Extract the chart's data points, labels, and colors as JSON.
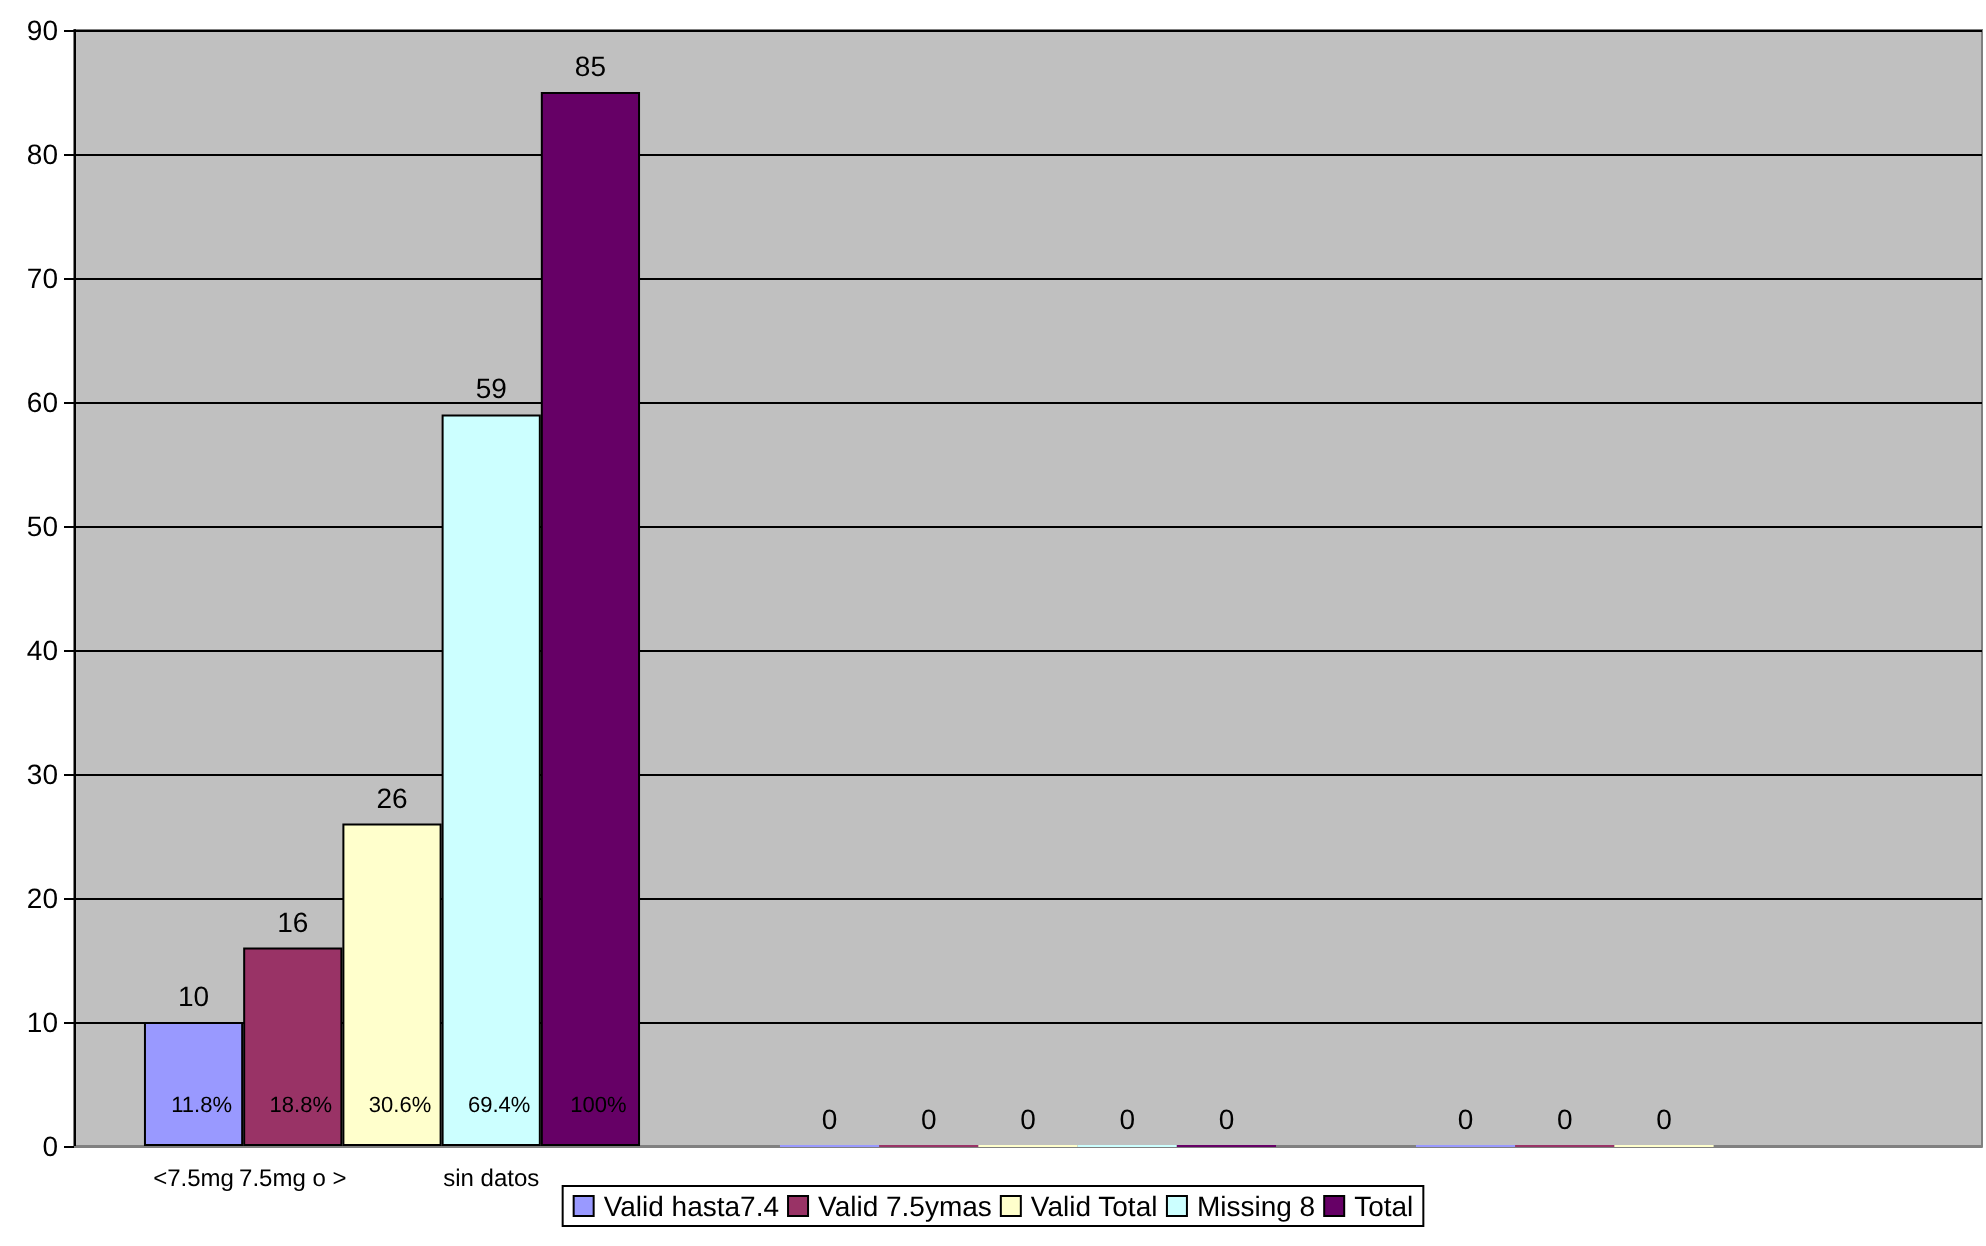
{
  "chart_data": {
    "type": "bar",
    "categories": [
      null,
      null,
      null
    ],
    "series": [
      {
        "name": "Valid hasta7.4",
        "color": "#9999ff",
        "values": [
          10,
          0,
          0
        ]
      },
      {
        "name": "Valid 7.5ymas",
        "color": "#993366",
        "values": [
          16,
          0,
          0
        ]
      },
      {
        "name": "Valid Total",
        "color": "#ffffcc",
        "values": [
          26,
          0,
          0
        ]
      },
      {
        "name": "Missing 8",
        "color": "#ccffff",
        "values": [
          59,
          0,
          null
        ]
      },
      {
        "name": "Total",
        "color": "#660066",
        "values": [
          85,
          0,
          null
        ]
      }
    ],
    "annotations": [
      "11.8%",
      "18.8%",
      "30.6%",
      "69.4%",
      "100%",
      "<7.5mg",
      "7.5mg o >",
      "sin datos"
    ],
    "ylim": [
      0,
      90
    ],
    "yticks": [
      0,
      10,
      20,
      30,
      40,
      50,
      60,
      70,
      80,
      90
    ],
    "grid": "y",
    "legend": "bottom",
    "data_labels": true
  }
}
